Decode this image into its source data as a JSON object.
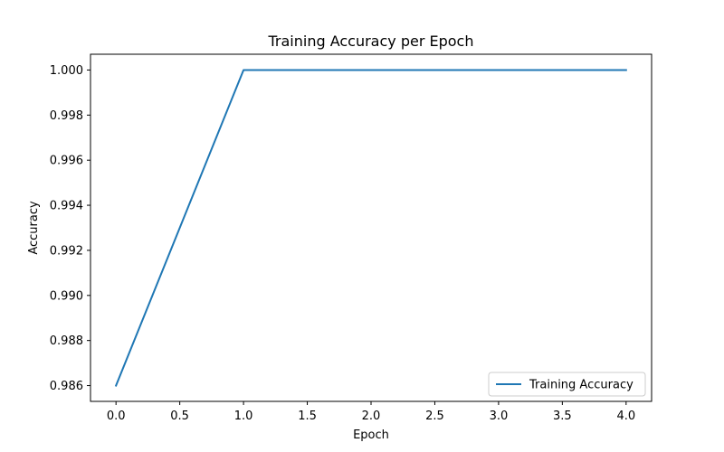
{
  "chart_data": {
    "type": "line",
    "title": "Training Accuracy per Epoch",
    "xlabel": "Epoch",
    "ylabel": "Accuracy",
    "x": [
      0,
      1,
      2,
      3,
      4
    ],
    "series": [
      {
        "name": "Training Accuracy",
        "values": [
          0.986,
          1.0,
          1.0,
          1.0,
          1.0
        ],
        "color": "#1f77b4"
      }
    ],
    "xlim": [
      -0.2,
      4.2
    ],
    "ylim": [
      0.9853,
      1.0007
    ],
    "xticks": [
      "0.0",
      "0.5",
      "1.0",
      "1.5",
      "2.0",
      "2.5",
      "3.0",
      "3.5",
      "4.0"
    ],
    "yticks": [
      "0.986",
      "0.988",
      "0.990",
      "0.992",
      "0.994",
      "0.996",
      "0.998",
      "1.000"
    ],
    "grid": false,
    "legend": "lower-right"
  }
}
